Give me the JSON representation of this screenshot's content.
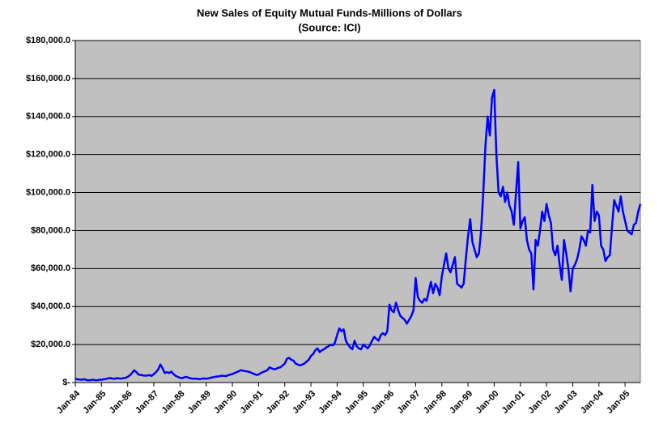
{
  "chart_data": {
    "type": "line",
    "title": "New Sales of Equity Mutual Funds-Millions of Dollars",
    "subtitle": "(Source: ICI)",
    "categories": [
      "Jan-84",
      null,
      null,
      null,
      null,
      null,
      null,
      null,
      null,
      null,
      null,
      null,
      "Jan-85",
      null,
      null,
      null,
      null,
      null,
      null,
      null,
      null,
      null,
      null,
      null,
      "Jan-86",
      null,
      null,
      null,
      null,
      null,
      null,
      null,
      null,
      null,
      null,
      null,
      "Jan-87",
      null,
      null,
      null,
      null,
      null,
      null,
      null,
      null,
      null,
      null,
      null,
      "Jan-88",
      null,
      null,
      null,
      null,
      null,
      null,
      null,
      null,
      null,
      null,
      null,
      "Jan-89",
      null,
      null,
      null,
      null,
      null,
      null,
      null,
      null,
      null,
      null,
      null,
      "Jan-90",
      null,
      null,
      null,
      null,
      null,
      null,
      null,
      null,
      null,
      null,
      null,
      "Jan-91",
      null,
      null,
      null,
      null,
      null,
      null,
      null,
      null,
      null,
      null,
      null,
      "Jan-92",
      null,
      null,
      null,
      null,
      null,
      null,
      null,
      null,
      null,
      null,
      null,
      "Jan-93",
      null,
      null,
      null,
      null,
      null,
      null,
      null,
      null,
      null,
      null,
      null,
      "Jan-94",
      null,
      null,
      null,
      null,
      null,
      null,
      null,
      null,
      null,
      null,
      null,
      "Jan-95",
      null,
      null,
      null,
      null,
      null,
      null,
      null,
      null,
      null,
      null,
      null,
      "Jan-96",
      null,
      null,
      null,
      null,
      null,
      null,
      null,
      null,
      null,
      null,
      null,
      "Jan-97",
      null,
      null,
      null,
      null,
      null,
      null,
      null,
      null,
      null,
      null,
      null,
      "Jan-98",
      null,
      null,
      null,
      null,
      null,
      null,
      null,
      null,
      null,
      null,
      null,
      "Jan-99",
      null,
      null,
      null,
      null,
      null,
      null,
      null,
      null,
      null,
      null,
      null,
      "Jan-00",
      null,
      null,
      null,
      null,
      null,
      null,
      null,
      null,
      null,
      null,
      null,
      "Jan-01",
      null,
      null,
      null,
      null,
      null,
      null,
      null,
      null,
      null,
      null,
      null,
      "Jan-02",
      null,
      null,
      null,
      null,
      null,
      null,
      null,
      null,
      null,
      null,
      null,
      "Jan-03",
      null,
      null,
      null,
      null,
      null,
      null,
      null,
      null,
      null,
      null,
      null,
      "Jan-04",
      null,
      null,
      null,
      null,
      null,
      null,
      null,
      null,
      null,
      null,
      null,
      "Jan-05",
      null,
      null,
      null,
      null,
      null,
      null,
      null
    ],
    "series": [
      {
        "name": "New Sales",
        "color": "#0000ff",
        "values": [
          2000,
          1700,
          1600,
          1500,
          1800,
          1400,
          1200,
          1300,
          1500,
          1300,
          1200,
          1500,
          1500,
          1700,
          1900,
          2200,
          2400,
          2100,
          2000,
          2300,
          2200,
          2100,
          2300,
          2500,
          3000,
          3800,
          5000,
          6500,
          5500,
          4200,
          4000,
          3800,
          3600,
          3700,
          3900,
          3500,
          4500,
          5500,
          7000,
          9500,
          7500,
          5000,
          5500,
          5000,
          5800,
          4500,
          3500,
          3000,
          2500,
          2300,
          2800,
          3000,
          2500,
          2200,
          2000,
          2100,
          1900,
          1800,
          2000,
          2200,
          2000,
          2200,
          2500,
          2800,
          3000,
          3200,
          3300,
          3600,
          3500,
          3400,
          3800,
          4200,
          4500,
          5000,
          5500,
          6000,
          6500,
          6200,
          6000,
          5800,
          5500,
          5000,
          4500,
          4000,
          4200,
          5000,
          5500,
          6000,
          6500,
          8000,
          7500,
          7000,
          7200,
          7800,
          8000,
          9000,
          10000,
          12500,
          13000,
          12000,
          11500,
          10000,
          9500,
          9000,
          9500,
          10000,
          11000,
          12000,
          14000,
          15000,
          17000,
          18000,
          16000,
          17000,
          17500,
          18500,
          19000,
          20000,
          19500,
          21000,
          25000,
          28500,
          27000,
          28000,
          22000,
          20000,
          18500,
          17500,
          22000,
          19000,
          18000,
          17500,
          20000,
          19000,
          18000,
          19500,
          22000,
          24000,
          23000,
          22000,
          25000,
          26000,
          25000,
          27000,
          41000,
          38000,
          37000,
          42000,
          38000,
          35000,
          34000,
          33000,
          31000,
          33000,
          35000,
          38000,
          55000,
          45000,
          43000,
          42000,
          44000,
          43000,
          48000,
          53000,
          47000,
          52000,
          50000,
          46000,
          56000,
          62000,
          68000,
          60000,
          58000,
          62000,
          66000,
          52000,
          51000,
          50000,
          52000,
          65000,
          77000,
          86000,
          74000,
          70000,
          66000,
          68000,
          80000,
          100000,
          125000,
          140000,
          130000,
          150000,
          154000,
          120000,
          100000,
          98000,
          103000,
          95000,
          100000,
          93000,
          90000,
          83000,
          100000,
          116000,
          81000,
          85000,
          87000,
          75000,
          70000,
          68000,
          49000,
          75000,
          72000,
          80000,
          90000,
          85000,
          94000,
          88000,
          84000,
          70000,
          67000,
          72000,
          62000,
          54000,
          75000,
          68000,
          60000,
          48000,
          60000,
          62000,
          65000,
          70000,
          77000,
          75000,
          72000,
          80000,
          79000,
          104000,
          85000,
          90000,
          88000,
          72000,
          70000,
          64000,
          66000,
          67000,
          82000,
          96000,
          93000,
          90000,
          98000,
          90000,
          85000,
          80000,
          79000,
          78000,
          83000,
          84000,
          90000,
          94000
        ]
      }
    ],
    "ylim": [
      0,
      180000
    ],
    "yticks": [
      {
        "value": 0,
        "label": "$-"
      },
      {
        "value": 20000,
        "label": "$20,000.0"
      },
      {
        "value": 40000,
        "label": "$40,000.0"
      },
      {
        "value": 60000,
        "label": "$60,000.0"
      },
      {
        "value": 80000,
        "label": "$80,000.0"
      },
      {
        "value": 100000,
        "label": "$100,000.0"
      },
      {
        "value": 120000,
        "label": "$120,000.0"
      },
      {
        "value": 140000,
        "label": "$140,000.0"
      },
      {
        "value": 160000,
        "label": "$160,000.0"
      },
      {
        "value": 180000,
        "label": "$180,000.0"
      }
    ],
    "grid": true
  }
}
